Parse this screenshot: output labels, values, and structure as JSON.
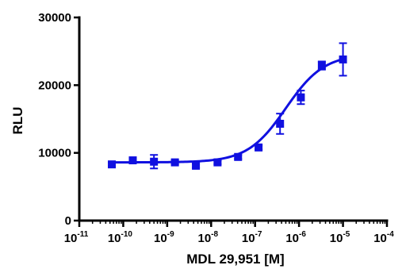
{
  "chart_data": {
    "type": "scatter",
    "title": "",
    "xlabel": "MDL 29,951 [M]",
    "ylabel": "RLU",
    "x_scale": "log",
    "xlim": [
      1e-11,
      0.0001
    ],
    "ylim": [
      0,
      30000
    ],
    "x_ticks": [
      {
        "base": "10",
        "exp": "-11",
        "value": 1e-11
      },
      {
        "base": "10",
        "exp": "-10",
        "value": 1e-10
      },
      {
        "base": "10",
        "exp": "-9",
        "value": 1e-09
      },
      {
        "base": "10",
        "exp": "-8",
        "value": 1e-08
      },
      {
        "base": "10",
        "exp": "-7",
        "value": 1e-07
      },
      {
        "base": "10",
        "exp": "-6",
        "value": 1e-06
      },
      {
        "base": "10",
        "exp": "-5",
        "value": 1e-05
      },
      {
        "base": "10",
        "exp": "-4",
        "value": 0.0001
      }
    ],
    "y_ticks": [
      {
        "label": "0",
        "value": 0
      },
      {
        "label": "10000",
        "value": 10000
      },
      {
        "label": "20000",
        "value": 20000
      },
      {
        "label": "30000",
        "value": 30000
      }
    ],
    "grid": false,
    "series": [
      {
        "color": "#1010e0",
        "marker": "square",
        "points": [
          {
            "x": 5.5e-11,
            "y": 8300,
            "err": 250
          },
          {
            "x": 1.65e-10,
            "y": 8900,
            "err": 300
          },
          {
            "x": 5e-10,
            "y": 8700,
            "err": 1000
          },
          {
            "x": 1.5e-09,
            "y": 8600,
            "err": 300
          },
          {
            "x": 4.5e-09,
            "y": 8100,
            "err": 300
          },
          {
            "x": 1.4e-08,
            "y": 8600,
            "err": 250
          },
          {
            "x": 4.1e-08,
            "y": 9400,
            "err": 300
          },
          {
            "x": 1.2e-07,
            "y": 10800,
            "err": 300
          },
          {
            "x": 3.7e-07,
            "y": 14300,
            "err": 1500
          },
          {
            "x": 1.1e-06,
            "y": 18200,
            "err": 1000
          },
          {
            "x": 3.3e-06,
            "y": 22900,
            "err": 600
          },
          {
            "x": 1e-05,
            "y": 23800,
            "err": 2400
          }
        ],
        "fit_curve": {
          "model": "sigmoidal dose-response",
          "bottom": 8600,
          "top": 24600,
          "log_ec50": -6.3,
          "hill_slope": 1.0
        }
      }
    ]
  }
}
